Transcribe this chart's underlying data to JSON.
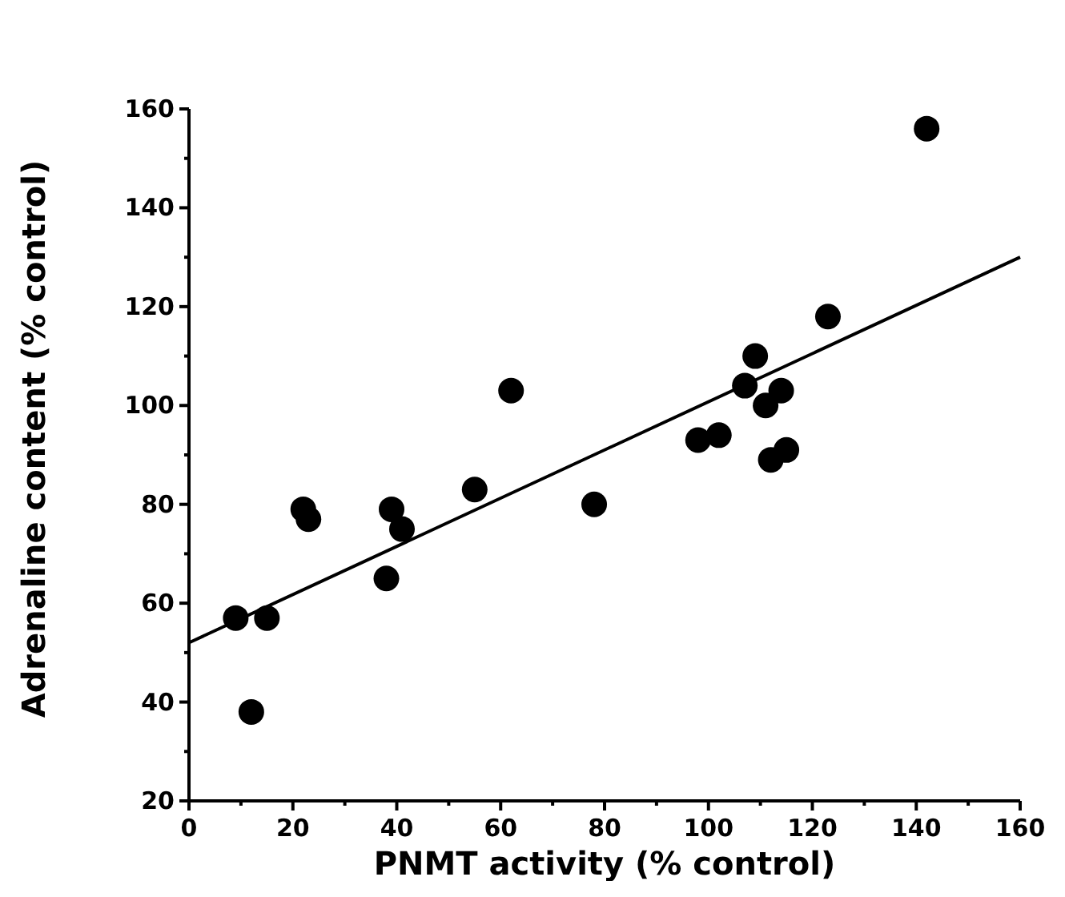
{
  "chart_data": {
    "type": "scatter",
    "xlabel": "PNMT activity (% control)",
    "ylabel": "Adrenaline content (% control)",
    "xlim": [
      0,
      160
    ],
    "ylim": [
      20,
      160
    ],
    "xticks": [
      0,
      {
        "value": 10,
        "label": null
      },
      20,
      {
        "value": 30,
        "label": null
      },
      40,
      {
        "value": 50,
        "label": null
      },
      60,
      {
        "value": 70,
        "label": null
      },
      80,
      {
        "value": 90,
        "label": null
      },
      100,
      {
        "value": 110,
        "label": null
      },
      120,
      {
        "value": 130,
        "label": null
      },
      140,
      {
        "value": 150,
        "label": null
      },
      160
    ],
    "yticks": [
      20,
      {
        "value": 30,
        "label": null
      },
      40,
      {
        "value": 50,
        "label": null
      },
      60,
      {
        "value": 70,
        "label": null
      },
      80,
      {
        "value": 90,
        "label": null
      },
      100,
      {
        "value": 110,
        "label": null
      },
      120,
      {
        "value": 130,
        "label": null
      },
      140,
      {
        "value": 150,
        "label": null
      },
      160
    ],
    "grid": false,
    "marker": "circle",
    "series": [
      {
        "color": "#000000",
        "x": [
          9,
          15,
          12,
          22,
          23,
          38,
          39,
          41,
          55,
          62,
          78,
          98,
          102,
          107,
          109,
          111,
          114,
          112,
          115,
          123,
          142
        ],
        "values": [
          57,
          57,
          38,
          79,
          77,
          65,
          79,
          75,
          83,
          103,
          80,
          93,
          94,
          104,
          110,
          100,
          103,
          89,
          91,
          118,
          156
        ]
      },
      {
        "type": "line",
        "color": "#000000",
        "marker": "none",
        "line_style": "solid",
        "x": [
          0,
          160
        ],
        "values": [
          52,
          130
        ]
      }
    ]
  }
}
